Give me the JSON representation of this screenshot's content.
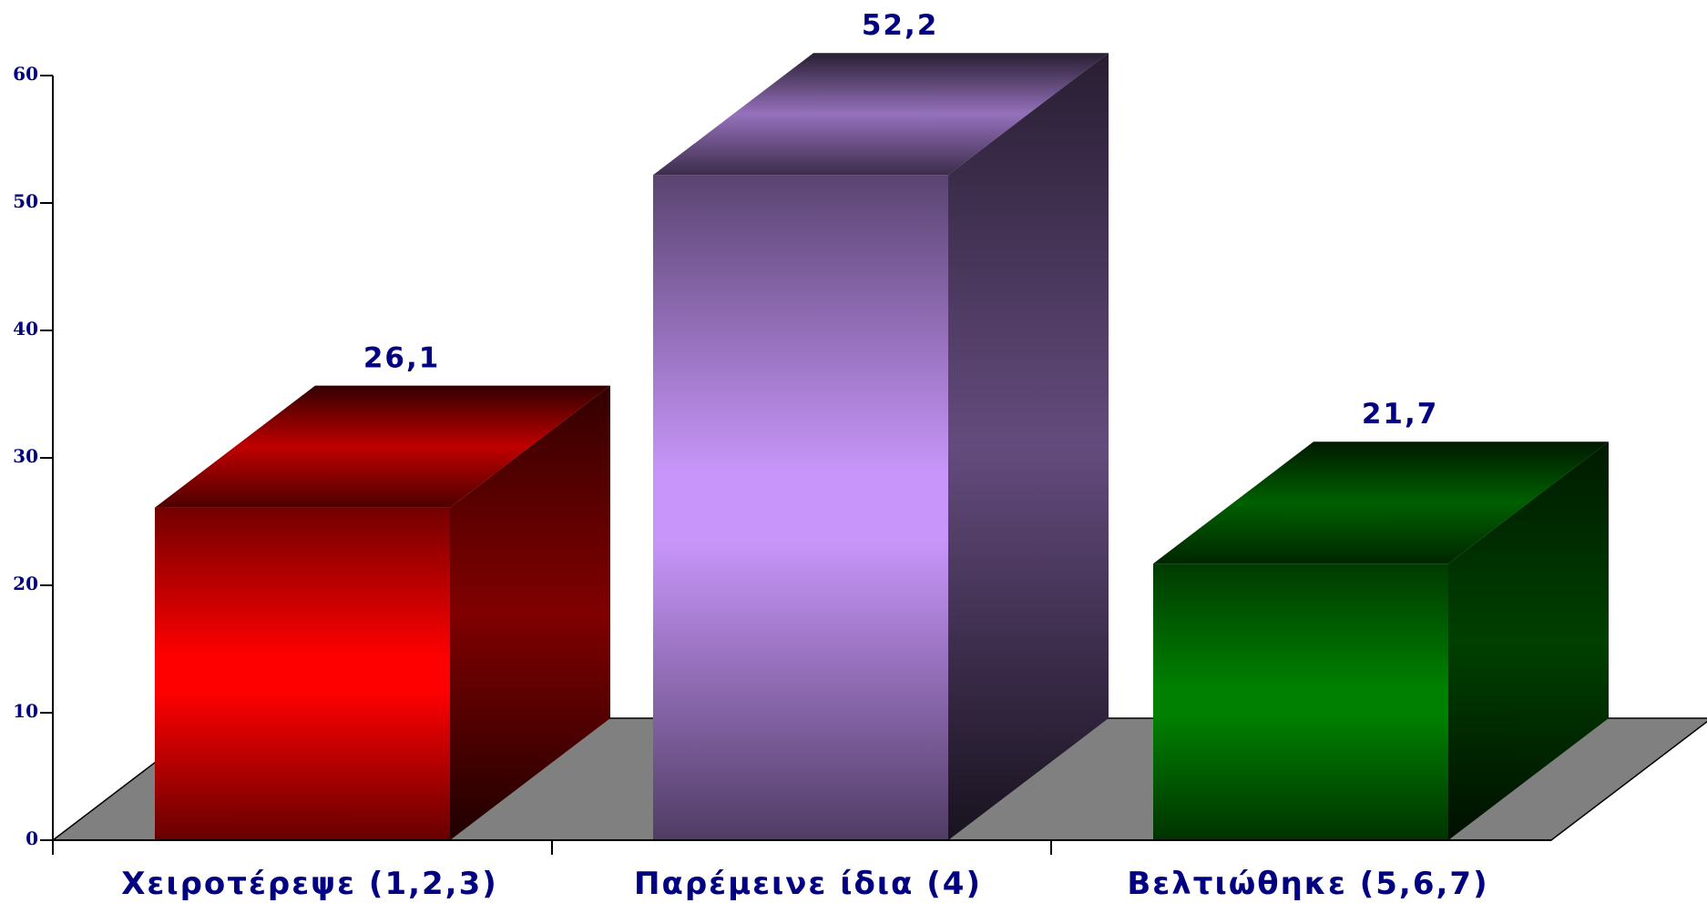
{
  "chart_data": {
    "type": "bar",
    "style": "3d",
    "categories": [
      "Χειροτέρεψε (1,2,3)",
      "Παρέμεινε ίδια (4)",
      "Βελτιώθηκε (5,6,7)"
    ],
    "values": [
      26.1,
      52.2,
      21.7
    ],
    "value_labels": [
      "26,1",
      "52,2",
      "21,7"
    ],
    "colors": [
      "#ff0000",
      "#c896fa",
      "#008000"
    ],
    "floor_color": "#808080",
    "label_color": "#000080",
    "ylim": [
      0,
      60
    ],
    "yticks": [
      "0",
      "10",
      "20",
      "30",
      "40",
      "50",
      "60"
    ],
    "grid": false,
    "legend": "none",
    "title": "",
    "xlabel": "",
    "ylabel": ""
  }
}
